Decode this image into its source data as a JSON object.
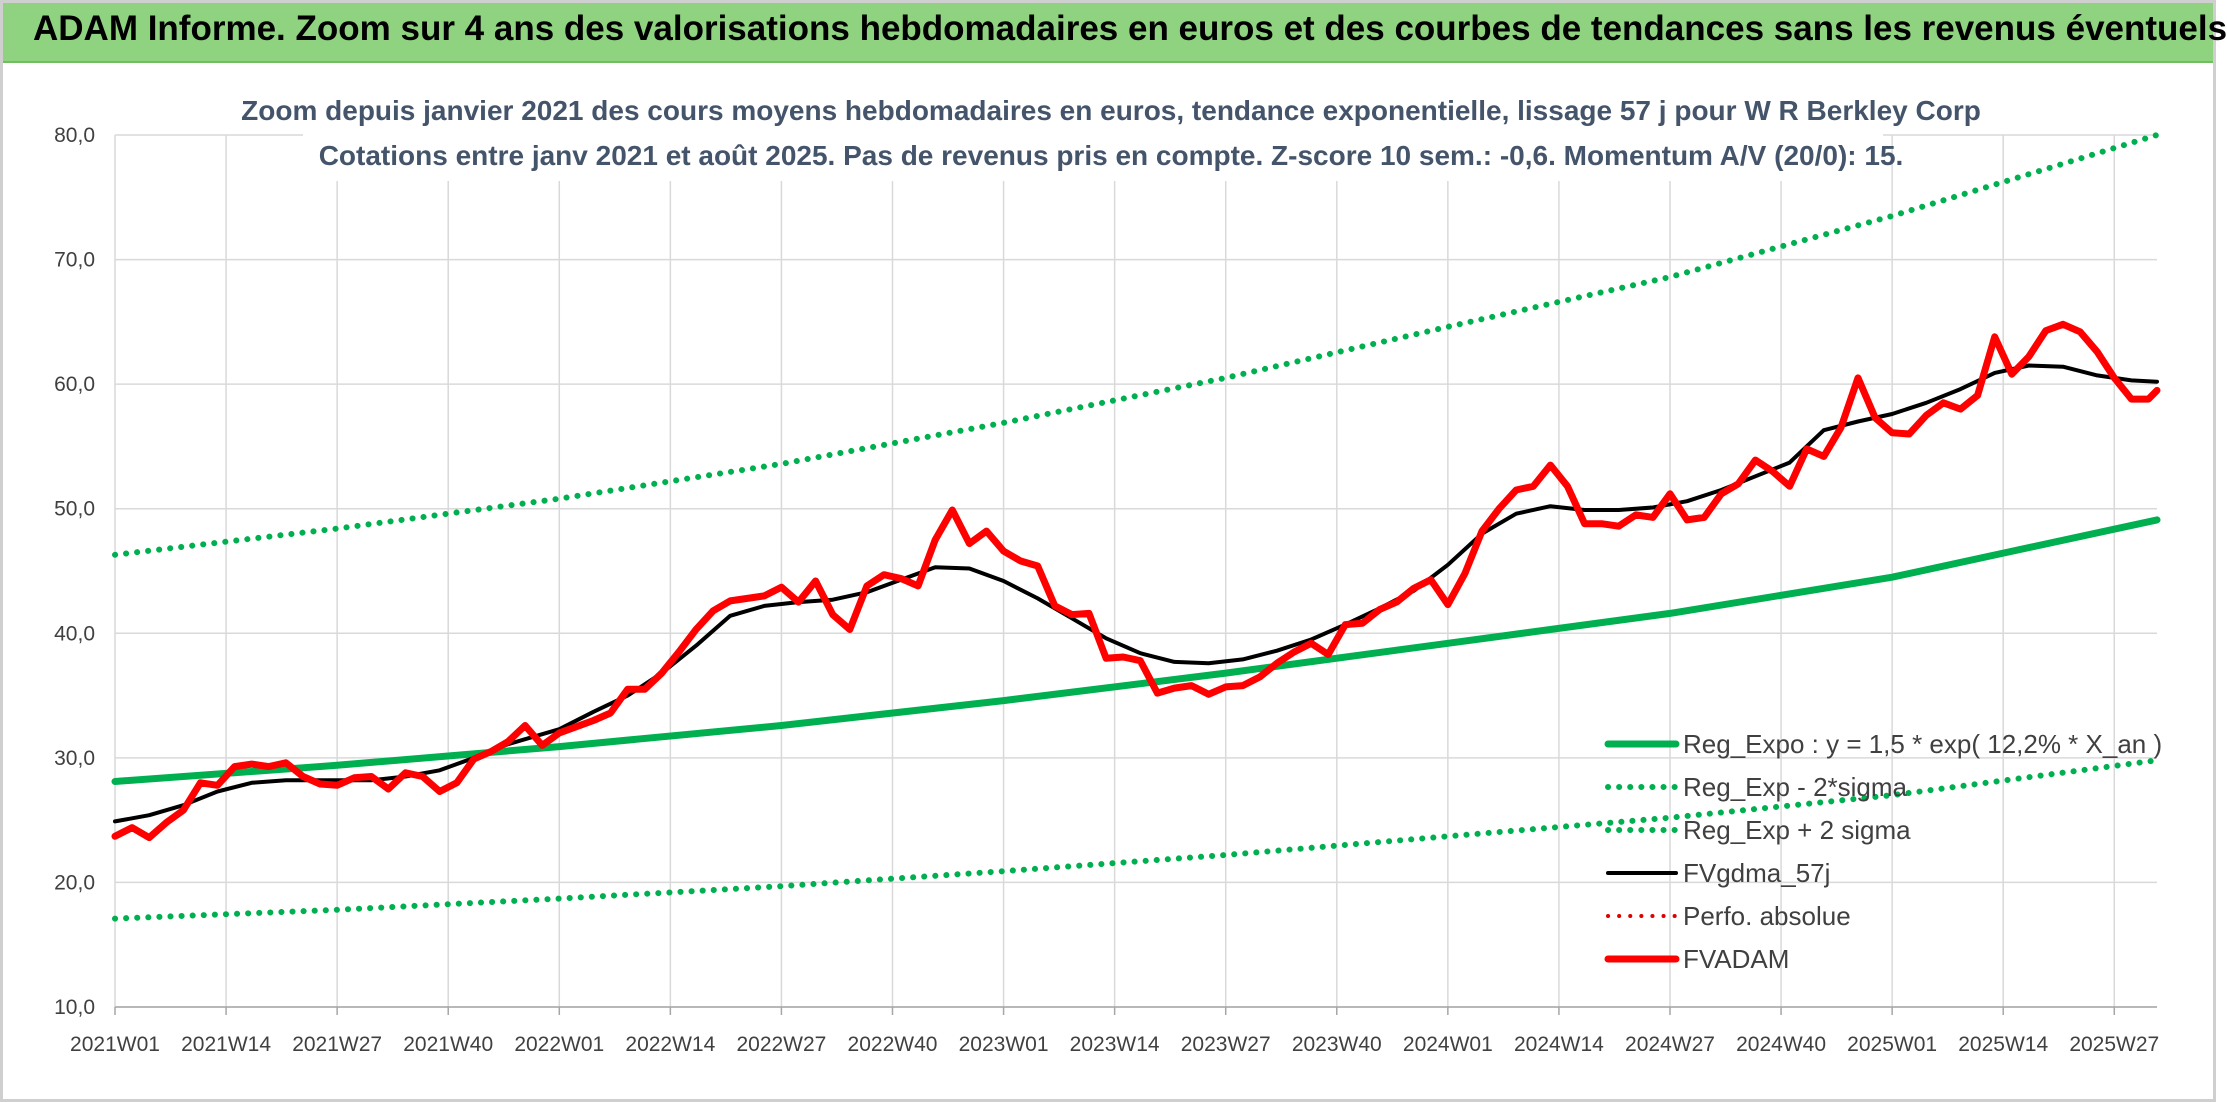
{
  "banner": {
    "title": "ADAM Informe. Zoom sur 4 ans des valorisations hebdomadaires en euros et des courbes de tendances sans les revenus éventuels",
    "color": "#8fd27f"
  },
  "chart_data": {
    "type": "line",
    "title_line1": "Zoom depuis janvier 2021 des cours moyens hebdomadaires en euros, tendance exponentielle, lissage 57 j pour W R Berkley Corp",
    "title_line2": "Cotations entre janv 2021 et août 2025. Pas de revenus pris en compte. Z-score 10 sem.: -0,6. Momentum A/V (20/0): 15.",
    "ylim": [
      10,
      80
    ],
    "yticks": [
      "10,0",
      "20,0",
      "30,0",
      "40,0",
      "50,0",
      "60,0",
      "70,0",
      "80,0"
    ],
    "xticks": [
      "2021W01",
      "2021W14",
      "2021W27",
      "2021W40",
      "2022W01",
      "2022W14",
      "2022W27",
      "2022W40",
      "2023W01",
      "2023W14",
      "2023W27",
      "2023W40",
      "2024W01",
      "2024W14",
      "2024W27",
      "2024W40",
      "2025W01",
      "2025W14",
      "2025W27"
    ],
    "grid": true,
    "legend_position": "bottom-right",
    "x_range_weeks": [
      0,
      239
    ],
    "series": [
      {
        "name": "Reg_Expo : y = 1,5 * exp( 12,2% *  X_an )",
        "color": "#00b050",
        "style": "solid",
        "width": 7,
        "points": [
          [
            0,
            28.1
          ],
          [
            26,
            29.4
          ],
          [
            52,
            30.9
          ],
          [
            78,
            32.6
          ],
          [
            104,
            34.6
          ],
          [
            130,
            36.8
          ],
          [
            156,
            39.2
          ],
          [
            182,
            41.6
          ],
          [
            208,
            44.5
          ],
          [
            239,
            49.1
          ]
        ]
      },
      {
        "name": "Reg_Exp - 2*sigma",
        "color": "#00b050",
        "style": "dotted",
        "width": 6,
        "points": [
          [
            0,
            17.1
          ],
          [
            26,
            17.8
          ],
          [
            52,
            18.7
          ],
          [
            78,
            19.7
          ],
          [
            104,
            20.9
          ],
          [
            130,
            22.2
          ],
          [
            156,
            23.7
          ],
          [
            182,
            25.2
          ],
          [
            208,
            27.0
          ],
          [
            239,
            29.8
          ]
        ]
      },
      {
        "name": "Reg_Exp + 2 sigma",
        "color": "#00b050",
        "style": "dotted",
        "width": 6,
        "points": [
          [
            0,
            46.3
          ],
          [
            26,
            48.4
          ],
          [
            52,
            50.8
          ],
          [
            78,
            53.6
          ],
          [
            104,
            56.9
          ],
          [
            130,
            60.5
          ],
          [
            156,
            64.6
          ],
          [
            182,
            68.6
          ],
          [
            208,
            73.5
          ],
          [
            239,
            80.0
          ]
        ]
      },
      {
        "name": "FVgdma_57j",
        "color": "#000000",
        "style": "solid",
        "width": 4,
        "points": [
          [
            0,
            24.9
          ],
          [
            4,
            25.4
          ],
          [
            8,
            26.2
          ],
          [
            12,
            27.3
          ],
          [
            16,
            28.0
          ],
          [
            20,
            28.2
          ],
          [
            26,
            28.2
          ],
          [
            30,
            28.2
          ],
          [
            34,
            28.5
          ],
          [
            38,
            29.0
          ],
          [
            42,
            30.0
          ],
          [
            46,
            31.1
          ],
          [
            52,
            32.3
          ],
          [
            56,
            33.7
          ],
          [
            60,
            35.0
          ],
          [
            64,
            36.8
          ],
          [
            68,
            39.0
          ],
          [
            72,
            41.4
          ],
          [
            76,
            42.2
          ],
          [
            80,
            42.5
          ],
          [
            84,
            42.7
          ],
          [
            88,
            43.3
          ],
          [
            92,
            44.3
          ],
          [
            96,
            45.3
          ],
          [
            100,
            45.2
          ],
          [
            104,
            44.2
          ],
          [
            108,
            42.8
          ],
          [
            112,
            41.2
          ],
          [
            116,
            39.6
          ],
          [
            120,
            38.4
          ],
          [
            124,
            37.7
          ],
          [
            128,
            37.6
          ],
          [
            132,
            37.9
          ],
          [
            136,
            38.6
          ],
          [
            140,
            39.5
          ],
          [
            144,
            40.7
          ],
          [
            148,
            42.0
          ],
          [
            152,
            43.4
          ],
          [
            156,
            45.5
          ],
          [
            160,
            48.0
          ],
          [
            164,
            49.6
          ],
          [
            168,
            50.2
          ],
          [
            172,
            49.9
          ],
          [
            176,
            49.9
          ],
          [
            180,
            50.1
          ],
          [
            184,
            50.6
          ],
          [
            188,
            51.5
          ],
          [
            192,
            52.6
          ],
          [
            196,
            53.7
          ],
          [
            200,
            56.3
          ],
          [
            204,
            57.0
          ],
          [
            208,
            57.6
          ],
          [
            212,
            58.5
          ],
          [
            216,
            59.6
          ],
          [
            220,
            60.9
          ],
          [
            224,
            61.5
          ],
          [
            228,
            61.4
          ],
          [
            232,
            60.7
          ],
          [
            236,
            60.3
          ],
          [
            239,
            60.2
          ]
        ]
      },
      {
        "name": "Perfo. absolue",
        "color": "#e00000",
        "style": "dotted",
        "width": 4,
        "points": []
      },
      {
        "name": "FVADAM",
        "color": "#ff0000",
        "style": "solid",
        "width": 7,
        "points": [
          [
            0,
            23.7
          ],
          [
            2,
            24.4
          ],
          [
            4,
            23.6
          ],
          [
            6,
            24.8
          ],
          [
            8,
            25.8
          ],
          [
            10,
            28.0
          ],
          [
            12,
            27.8
          ],
          [
            14,
            29.3
          ],
          [
            16,
            29.5
          ],
          [
            18,
            29.3
          ],
          [
            20,
            29.6
          ],
          [
            22,
            28.5
          ],
          [
            24,
            27.9
          ],
          [
            26,
            27.8
          ],
          [
            28,
            28.4
          ],
          [
            30,
            28.5
          ],
          [
            32,
            27.5
          ],
          [
            34,
            28.8
          ],
          [
            36,
            28.5
          ],
          [
            38,
            27.3
          ],
          [
            40,
            28.0
          ],
          [
            42,
            29.9
          ],
          [
            44,
            30.5
          ],
          [
            46,
            31.3
          ],
          [
            48,
            32.6
          ],
          [
            50,
            31.0
          ],
          [
            52,
            32.0
          ],
          [
            54,
            32.5
          ],
          [
            56,
            33.0
          ],
          [
            58,
            33.6
          ],
          [
            60,
            35.5
          ],
          [
            62,
            35.5
          ],
          [
            64,
            36.8
          ],
          [
            66,
            38.5
          ],
          [
            68,
            40.3
          ],
          [
            70,
            41.8
          ],
          [
            72,
            42.6
          ],
          [
            74,
            42.8
          ],
          [
            76,
            43.0
          ],
          [
            78,
            43.7
          ],
          [
            80,
            42.5
          ],
          [
            82,
            44.2
          ],
          [
            84,
            41.5
          ],
          [
            86,
            40.3
          ],
          [
            88,
            43.8
          ],
          [
            90,
            44.7
          ],
          [
            92,
            44.4
          ],
          [
            94,
            43.8
          ],
          [
            96,
            47.5
          ],
          [
            98,
            49.9
          ],
          [
            100,
            47.2
          ],
          [
            102,
            48.2
          ],
          [
            104,
            46.6
          ],
          [
            106,
            45.8
          ],
          [
            108,
            45.4
          ],
          [
            110,
            42.2
          ],
          [
            112,
            41.5
          ],
          [
            114,
            41.6
          ],
          [
            116,
            38.0
          ],
          [
            118,
            38.1
          ],
          [
            120,
            37.8
          ],
          [
            122,
            35.2
          ],
          [
            124,
            35.6
          ],
          [
            126,
            35.8
          ],
          [
            128,
            35.1
          ],
          [
            130,
            35.7
          ],
          [
            132,
            35.8
          ],
          [
            134,
            36.5
          ],
          [
            136,
            37.6
          ],
          [
            138,
            38.5
          ],
          [
            140,
            39.2
          ],
          [
            142,
            38.3
          ],
          [
            144,
            40.7
          ],
          [
            146,
            40.8
          ],
          [
            148,
            41.9
          ],
          [
            150,
            42.5
          ],
          [
            152,
            43.6
          ],
          [
            154,
            44.3
          ],
          [
            156,
            42.3
          ],
          [
            158,
            44.8
          ],
          [
            160,
            48.2
          ],
          [
            162,
            50.0
          ],
          [
            164,
            51.5
          ],
          [
            166,
            51.8
          ],
          [
            168,
            53.5
          ],
          [
            170,
            51.8
          ],
          [
            172,
            48.8
          ],
          [
            174,
            48.8
          ],
          [
            176,
            48.6
          ],
          [
            178,
            49.5
          ],
          [
            180,
            49.3
          ],
          [
            182,
            51.2
          ],
          [
            184,
            49.1
          ],
          [
            186,
            49.3
          ],
          [
            188,
            51.2
          ],
          [
            190,
            52.0
          ],
          [
            192,
            53.9
          ],
          [
            194,
            53.0
          ],
          [
            196,
            51.8
          ],
          [
            198,
            54.8
          ],
          [
            200,
            54.2
          ],
          [
            202,
            56.5
          ],
          [
            204,
            60.5
          ],
          [
            206,
            57.3
          ],
          [
            208,
            56.1
          ],
          [
            210,
            56.0
          ],
          [
            212,
            57.5
          ],
          [
            214,
            58.5
          ],
          [
            216,
            58.0
          ],
          [
            218,
            59.1
          ],
          [
            220,
            63.8
          ],
          [
            222,
            60.8
          ],
          [
            224,
            62.2
          ],
          [
            226,
            64.3
          ],
          [
            228,
            64.8
          ],
          [
            230,
            64.2
          ],
          [
            232,
            62.6
          ],
          [
            234,
            60.5
          ],
          [
            236,
            58.8
          ],
          [
            238,
            58.8
          ],
          [
            239,
            59.5
          ]
        ]
      }
    ]
  }
}
